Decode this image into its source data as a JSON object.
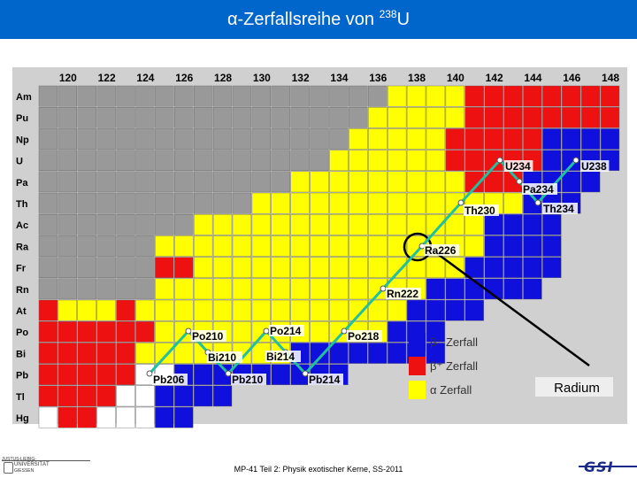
{
  "title": {
    "main": "α-Zerfallsreihe von ",
    "sup": "238",
    "element": "U"
  },
  "neutron_numbers": [
    "120",
    "122",
    "124",
    "126",
    "128",
    "130",
    "132",
    "134",
    "136",
    "138",
    "140",
    "142",
    "144",
    "146",
    "148"
  ],
  "elements": [
    "Am",
    "Pu",
    "Np",
    "U",
    "Pa",
    "Th",
    "Ac",
    "Ra",
    "Fr",
    "Rn",
    "At",
    "Po",
    "Bi",
    "Pb",
    "Tl",
    "Hg"
  ],
  "colors": {
    "beta_minus": "#1010dd",
    "beta_plus": "#ee1111",
    "alpha": "#ffff00",
    "stable": "#ffffff",
    "unknown": "#999999",
    "chain": "#20c0a0",
    "empty": "#d0d0d0"
  },
  "chain_labels": [
    "U238",
    "Th234",
    "Pa234",
    "U234",
    "Th230",
    "Ra226",
    "Rn222",
    "Po218",
    "Pb214",
    "Bi214",
    "Po214",
    "Pb210",
    "Bi210",
    "Po210",
    "Pb206"
  ],
  "legend": {
    "beta_minus": "β⁻  Zerfall",
    "beta_plus": "β⁺  Zerfall",
    "alpha": "α    Zerfall"
  },
  "callout": "Radium",
  "footer": "MP-41 Teil 2: Physik exotischer Kerne, SS-2011",
  "logo_left": {
    "line1": "JUSTUS-LIEBIG-",
    "line2": "UNIVERSITÄT",
    "line3": "GIESSEN"
  },
  "logo_right": "GSI"
}
